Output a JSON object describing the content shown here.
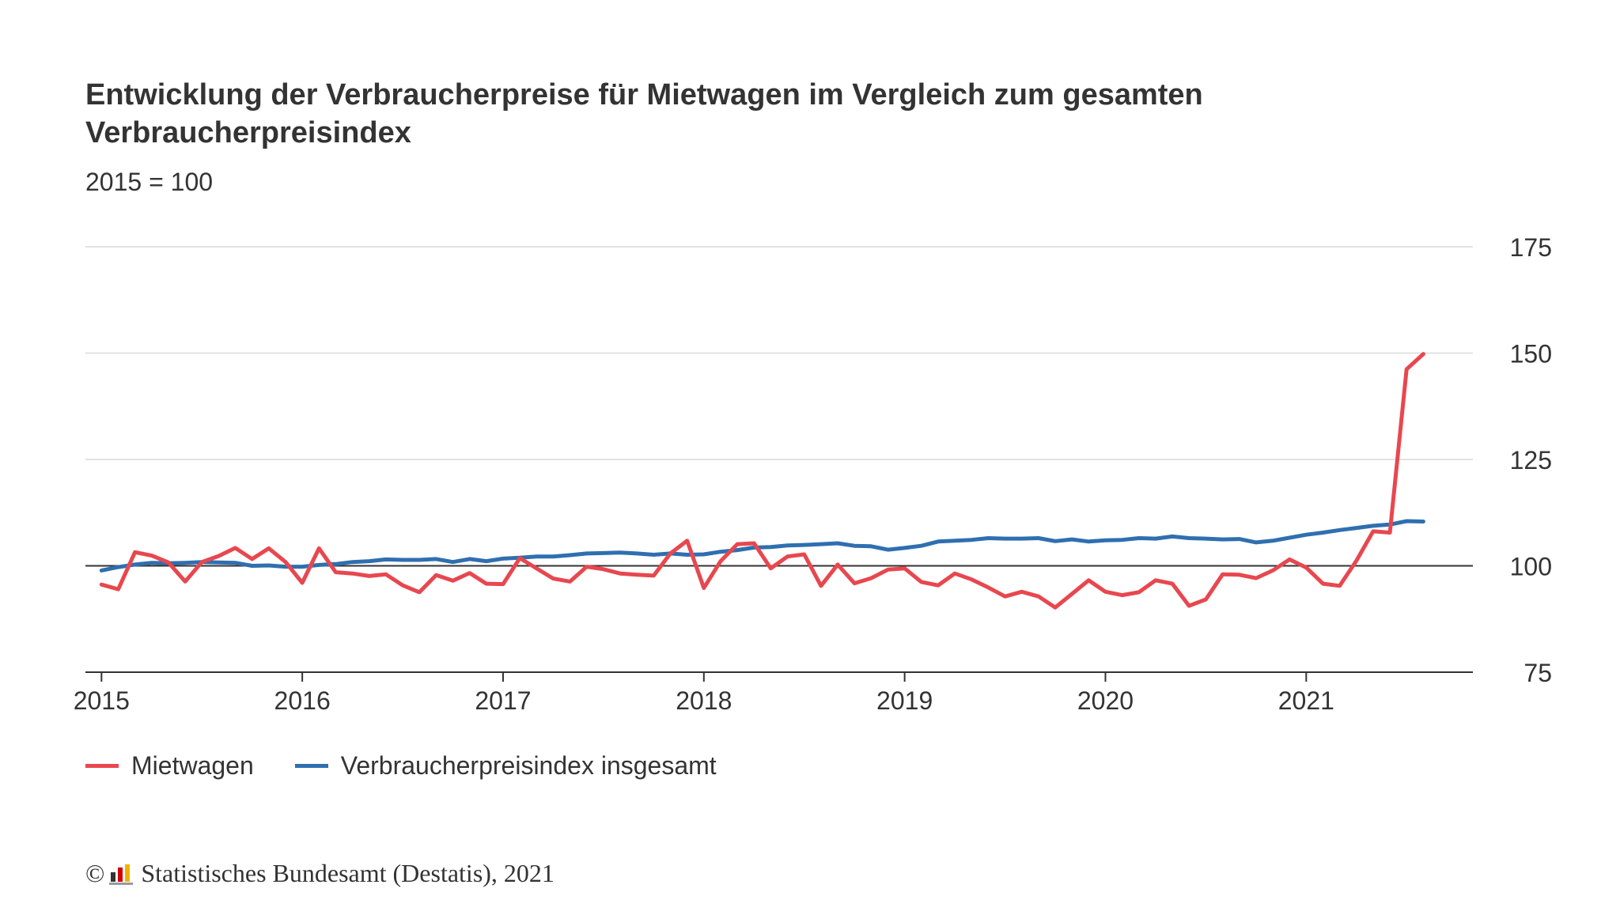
{
  "title": "Entwicklung der Verbraucherpreise für Mietwagen im Vergleich zum gesamten Verbraucherpreisindex",
  "subtitle": "2015 = 100",
  "legend": {
    "series_1": "Mietwagen",
    "series_2": "Verbraucherpreisindex insgesamt"
  },
  "credit": {
    "copyright": "©",
    "text": "Statistisches Bundesamt (Destatis), 2021"
  },
  "colors": {
    "mietwagen": "#e8474f",
    "vpi": "#2f6fb0",
    "grid": "#d9d9d9",
    "axis": "#333333"
  },
  "chart_data": {
    "type": "line",
    "title": "Entwicklung der Verbraucherpreise für Mietwagen im Vergleich zum gesamten Verbraucherpreisindex",
    "subtitle": "2015 = 100",
    "x_start": "2015-01",
    "months": 80,
    "x_ticks": [
      "2015",
      "2016",
      "2017",
      "2018",
      "2019",
      "2020",
      "2021"
    ],
    "y_ticks": [
      75,
      100,
      125,
      150,
      175
    ],
    "ylim": [
      75,
      175
    ],
    "baseline": 100,
    "xlim_years": [
      2014.92,
      2021.83
    ],
    "series": [
      {
        "name": "Mietwagen",
        "color": "#e8474f",
        "values": [
          95.6,
          94.5,
          103.2,
          102.4,
          100.8,
          96.3,
          100.9,
          102.3,
          104.2,
          101.6,
          104.1,
          100.9,
          96.0,
          104.1,
          98.5,
          98.2,
          97.6,
          98.0,
          95.4,
          93.8,
          97.8,
          96.5,
          98.3,
          95.8,
          95.7,
          101.8,
          99.4,
          97.0,
          96.3,
          99.8,
          99.2,
          98.2,
          97.9,
          97.7,
          102.9,
          105.9,
          94.8,
          101.1,
          105.1,
          105.3,
          99.4,
          102.2,
          102.7,
          95.3,
          100.3,
          95.9,
          97.1,
          99.1,
          99.4,
          96.2,
          95.4,
          98.2,
          96.8,
          94.9,
          92.8,
          93.9,
          92.8,
          90.2,
          93.4,
          96.6,
          93.9,
          93.1,
          93.8,
          96.6,
          95.8,
          90.6,
          92.1,
          98.0,
          97.9,
          97.1,
          98.9,
          101.5,
          99.6,
          95.8,
          95.3,
          101.2,
          108.1,
          107.8,
          146.2,
          149.8
        ]
      },
      {
        "name": "Verbraucherpreisindex insgesamt",
        "color": "#2f6fb0",
        "values": [
          98.9,
          99.7,
          100.3,
          100.7,
          100.6,
          100.7,
          100.9,
          100.8,
          100.7,
          100.0,
          100.1,
          99.8,
          99.8,
          100.2,
          100.4,
          100.9,
          101.1,
          101.5,
          101.4,
          101.4,
          101.6,
          100.9,
          101.6,
          101.1,
          101.7,
          101.9,
          102.2,
          102.2,
          102.5,
          102.9,
          103.0,
          103.1,
          102.9,
          102.6,
          102.9,
          102.6,
          102.7,
          103.3,
          103.7,
          104.3,
          104.4,
          104.8,
          104.9,
          105.1,
          105.3,
          104.7,
          104.6,
          103.8,
          104.2,
          104.7,
          105.7,
          105.9,
          106.1,
          106.5,
          106.4,
          106.4,
          106.5,
          105.8,
          106.2,
          105.7,
          106.0,
          106.1,
          106.5,
          106.4,
          106.9,
          106.5,
          106.4,
          106.2,
          106.3,
          105.5,
          105.9,
          106.6,
          107.3,
          107.8,
          108.4,
          108.9,
          109.4,
          109.7,
          110.5,
          110.4
        ]
      }
    ]
  }
}
